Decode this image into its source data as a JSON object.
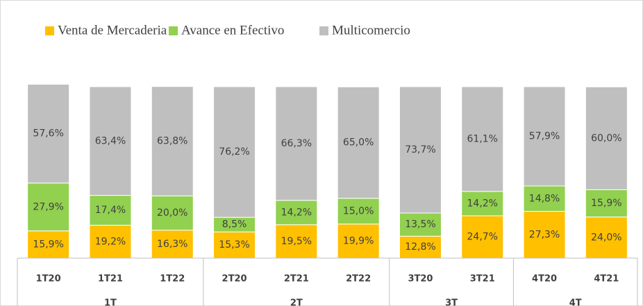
{
  "chart_data": {
    "type": "stacked_bar",
    "categories": [
      "1T20",
      "1T21",
      "1T22",
      "2T20",
      "2T21",
      "2T22",
      "3T20",
      "3T21",
      "4T20",
      "4T21"
    ],
    "groups": [
      "1T",
      "2T",
      "3T",
      "4T"
    ],
    "series": [
      {
        "name": "Venta de Mercaderia",
        "color": "#ffc000",
        "values": [
          15.9,
          19.2,
          16.3,
          15.3,
          19.5,
          19.9,
          12.8,
          24.7,
          27.3,
          24.0
        ],
        "value_labels": [
          "15,9%",
          "19,2%",
          "16,3%",
          "15,3%",
          "19,5%",
          "19,9%",
          "12,8%",
          "24,7%",
          "27,3%",
          "24,0%"
        ]
      },
      {
        "name": "Avance en Efectivo",
        "color": "#92d050",
        "values": [
          27.9,
          17.4,
          20.0,
          8.5,
          14.2,
          15.0,
          13.5,
          14.2,
          14.8,
          15.9
        ],
        "value_labels": [
          "27,9%",
          "17,4%",
          "20,0%",
          "8,5%",
          "14,2%",
          "15,0%",
          "13,5%",
          "14,2%",
          "14,8%",
          "15,9%"
        ]
      },
      {
        "name": "Multicomercio",
        "color": "#bfbfbf",
        "values": [
          57.6,
          63.4,
          63.8,
          76.2,
          66.3,
          65.0,
          73.7,
          61.1,
          57.9,
          60.0
        ],
        "value_labels": [
          "57,6%",
          "63,4%",
          "63,8%",
          "76,2%",
          "66,3%",
          "65,0%",
          "73,7%",
          "61,1%",
          "57,9%",
          "60,0%"
        ]
      }
    ],
    "ylim": [
      0,
      102
    ]
  }
}
